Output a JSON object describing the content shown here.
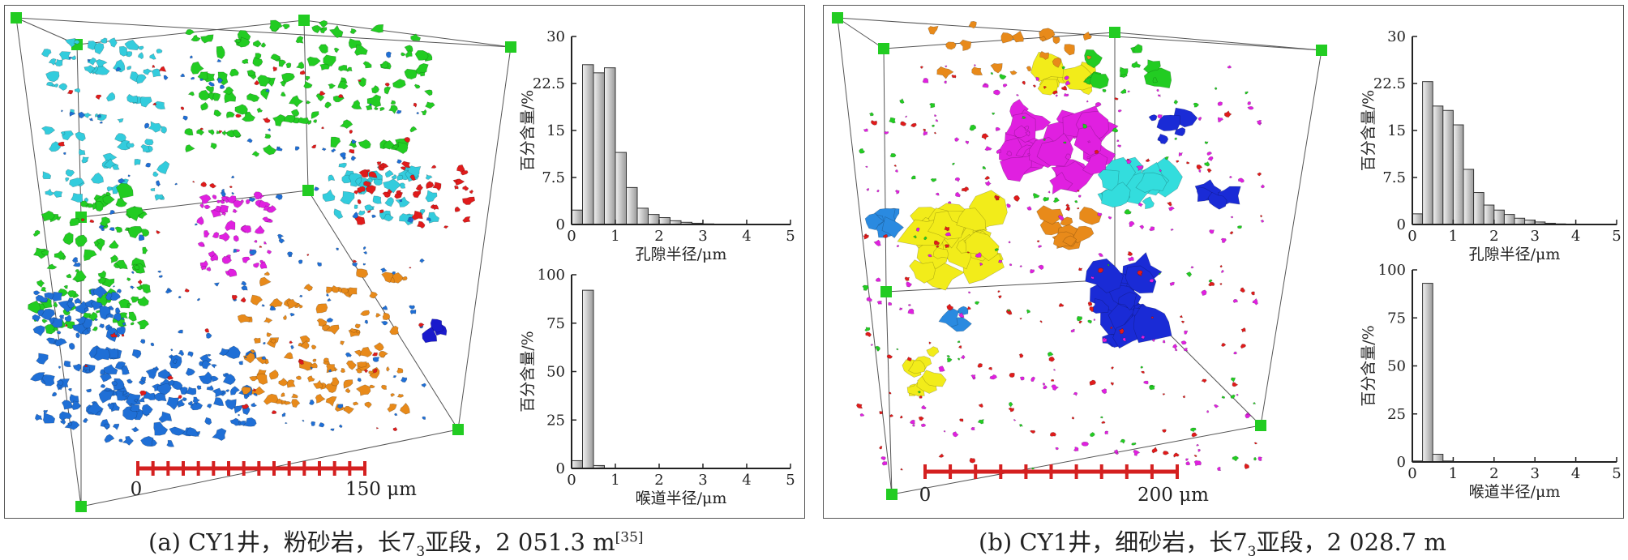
{
  "panels": [
    {
      "id": "a",
      "caption": {
        "prefix": "(a) CY1井，粉砂岩，长7",
        "sub": "3",
        "suffix": "亚段，2 051.3 m",
        "ref": "[35]"
      },
      "scale_bar": {
        "start_label": "0",
        "end_label": "150 μm",
        "ticks": 15
      },
      "pore_palette": [
        "#22cc22",
        "#33ccdd",
        "#1f6fd6",
        "#e88a1a",
        "#e020e0",
        "#e01b1b",
        "#1a1acc",
        "#eeee22"
      ]
    },
    {
      "id": "b",
      "caption": {
        "prefix": "(b) CY1井，细砂岩，长7",
        "sub": "3",
        "suffix": "亚段，2 028.7 m",
        "ref": ""
      },
      "scale_bar": {
        "start_label": "0",
        "end_label": "200 μm",
        "ticks": 10
      },
      "pore_palette": [
        "#f2ec1a",
        "#e020e0",
        "#1a2bd6",
        "#2a8ae0",
        "#e88a1a",
        "#33dddd",
        "#22cc22",
        "#e01b1b"
      ]
    }
  ],
  "chart_data": [
    {
      "panel": "a",
      "type": "bar",
      "xlabel": "孔隙半径/μm",
      "ylabel": "百分含量/%",
      "bin_width": 0.25,
      "x_starts": [
        0,
        0.25,
        0.5,
        0.75,
        1.0,
        1.25,
        1.5,
        1.75,
        2.0,
        2.25,
        2.5,
        2.75,
        3.0,
        3.25,
        3.5,
        3.75,
        4.0,
        4.25,
        4.5,
        4.75
      ],
      "values": [
        2.3,
        25.5,
        24.2,
        25.0,
        11.5,
        5.9,
        2.6,
        1.6,
        1.1,
        0.6,
        0.35,
        0.2,
        0.1,
        0.05,
        0.03,
        0.02,
        0.01,
        0.01,
        0.01,
        0.01
      ],
      "ylim": [
        0,
        30
      ],
      "yticks": [
        "0",
        "7.5",
        "15",
        "22.5",
        "30"
      ],
      "xlim": [
        0,
        5
      ],
      "xticks": [
        "0",
        "1",
        "2",
        "3",
        "4",
        "5"
      ]
    },
    {
      "panel": "a",
      "type": "bar",
      "xlabel": "喉道半径/μm",
      "ylabel": "百分含量/%",
      "bin_width": 0.25,
      "x_starts": [
        0,
        0.25,
        0.5
      ],
      "values": [
        4.0,
        92.0,
        1.5
      ],
      "ylim": [
        0,
        100
      ],
      "yticks": [
        "0",
        "25",
        "50",
        "75",
        "100"
      ],
      "xlim": [
        0,
        5
      ],
      "xticks": [
        "0",
        "1",
        "2",
        "3",
        "4",
        "5"
      ]
    },
    {
      "panel": "b",
      "type": "bar",
      "xlabel": "孔隙半径/μm",
      "ylabel": "百分含量/%",
      "bin_width": 0.25,
      "x_starts": [
        0,
        0.25,
        0.5,
        0.75,
        1.0,
        1.25,
        1.5,
        1.75,
        2.0,
        2.25,
        2.5,
        2.75,
        3.0,
        3.25,
        3.5,
        3.75,
        4.0,
        4.25,
        4.5,
        4.75
      ],
      "values": [
        1.7,
        22.8,
        18.9,
        18.2,
        15.9,
        8.8,
        5.1,
        3.1,
        2.3,
        1.6,
        1.0,
        0.7,
        0.4,
        0.2,
        0.1,
        0.05,
        0.03,
        0.02,
        0.01,
        0.01
      ],
      "ylim": [
        0,
        30
      ],
      "yticks": [
        "0",
        "7.5",
        "15",
        "22.5",
        "30"
      ],
      "xlim": [
        0,
        5
      ],
      "xticks": [
        "0",
        "1",
        "2",
        "3",
        "4",
        "5"
      ]
    },
    {
      "panel": "b",
      "type": "bar",
      "xlabel": "喉道半径/μm",
      "ylabel": "百分含量/%",
      "bin_width": 0.25,
      "x_starts": [
        0,
        0.25,
        0.5,
        0.75,
        1.0
      ],
      "values": [
        0.5,
        93.0,
        4.0,
        0.5,
        0.2
      ],
      "ylim": [
        0,
        100
      ],
      "yticks": [
        "0",
        "25",
        "50",
        "75",
        "100"
      ],
      "xlim": [
        0,
        5
      ],
      "xticks": [
        "0",
        "1",
        "2",
        "3",
        "4",
        "5"
      ]
    }
  ]
}
